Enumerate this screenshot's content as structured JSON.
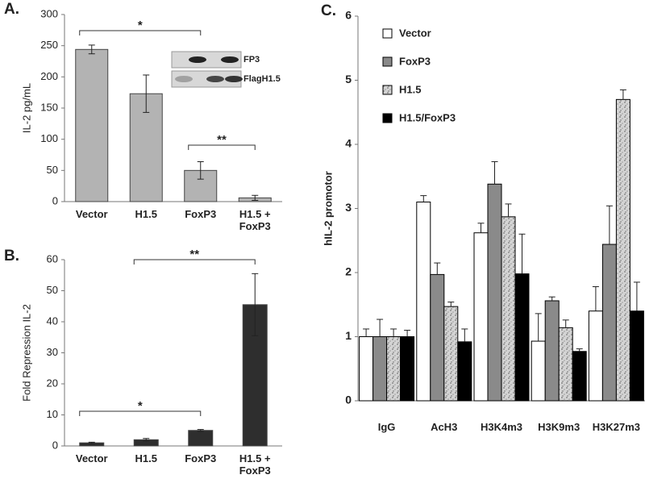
{
  "chart_data": [
    {
      "type": "bar",
      "panel_label": "A.",
      "y_label": "IL-2 pg/mL",
      "categories": [
        "Vector",
        "H1.5",
        "FoxP3",
        "H1.5 + FoxP3"
      ],
      "values": [
        244,
        173,
        50,
        6
      ],
      "errors": [
        7,
        30,
        14,
        4
      ],
      "error_direction": "both",
      "color": "#b3b3b3",
      "ylim": [
        0,
        300
      ],
      "yticks": [
        0,
        50,
        100,
        150,
        200,
        250,
        300
      ],
      "annotations": [
        {
          "text": "*",
          "between": [
            "Vector",
            "FoxP3"
          ]
        },
        {
          "text": "**",
          "between": [
            "FoxP3",
            "H1.5 + FoxP3"
          ]
        }
      ],
      "inset_labels": [
        "FP3",
        "FlagH1.5"
      ]
    },
    {
      "type": "bar",
      "panel_label": "B.",
      "y_label": "Fold Repression IL-2",
      "categories": [
        "Vector",
        "H1.5",
        "FoxP3",
        "H1.5 + FoxP3"
      ],
      "values": [
        1,
        2,
        5,
        45.5
      ],
      "errors": [
        0.2,
        0.4,
        0.3,
        10
      ],
      "error_direction": "both",
      "color": "#2e2e2e",
      "ylim": [
        0,
        60
      ],
      "yticks": [
        0,
        10,
        20,
        30,
        40,
        50,
        60
      ],
      "annotations": [
        {
          "text": "**",
          "between": [
            "H1.5",
            "H1.5 + FoxP3"
          ]
        },
        {
          "text": "*",
          "between": [
            "Vector",
            "FoxP3"
          ]
        }
      ]
    },
    {
      "type": "grouped_bar",
      "panel_label": "C.",
      "y_label": "hIL-2 promotor",
      "categories": [
        "IgG",
        "AcH3",
        "H3K4m3",
        "H3K9m3",
        "H3K27m3"
      ],
      "series": [
        {
          "name": "Vector",
          "color": "#ffffff",
          "values": [
            1.0,
            3.1,
            2.62,
            0.93,
            1.4
          ],
          "errors": [
            0.12,
            0.1,
            0.15,
            0.43,
            0.38
          ]
        },
        {
          "name": "FoxP3",
          "color": "#8a8a8a",
          "values": [
            1.0,
            1.97,
            3.38,
            1.56,
            2.44
          ],
          "errors": [
            0.27,
            0.18,
            0.35,
            0.06,
            0.6
          ]
        },
        {
          "name": "H1.5",
          "color": "#cfcfcf",
          "values": [
            1.0,
            1.47,
            2.87,
            1.14,
            4.7
          ],
          "errors": [
            0.12,
            0.07,
            0.2,
            0.12,
            0.15
          ]
        },
        {
          "name": "H1.5/FoxP3",
          "color": "#000000",
          "values": [
            1.0,
            0.92,
            1.98,
            0.77,
            1.4
          ],
          "errors": [
            0.1,
            0.2,
            0.62,
            0.04,
            0.45
          ]
        }
      ],
      "error_direction": "up",
      "ylim": [
        0,
        6
      ],
      "yticks": [
        0,
        1,
        2,
        3,
        4,
        5,
        6
      ]
    }
  ]
}
